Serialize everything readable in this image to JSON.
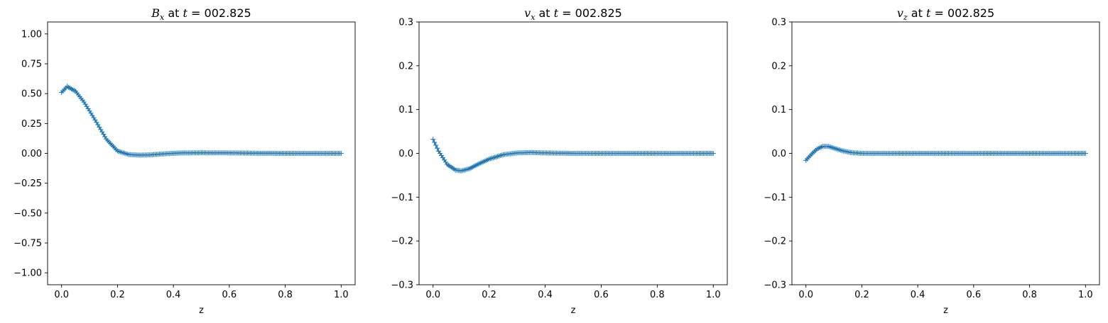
{
  "figure": {
    "background": "#ffffff",
    "marker_color": "#1f77b4",
    "marker": "+"
  },
  "chart_data": [
    {
      "type": "scatter",
      "title": {
        "var": "B",
        "sub": "x",
        "mid": " at ",
        "tvar": "t",
        "rest": " = 002.825"
      },
      "xlabel": "z",
      "ylabel": "",
      "xlim": [
        -0.05,
        1.05
      ],
      "ylim": [
        -1.1,
        1.1
      ],
      "xticks": [
        0.0,
        0.2,
        0.4,
        0.6,
        0.8,
        1.0
      ],
      "xtick_labels": [
        "0.0",
        "0.2",
        "0.4",
        "0.6",
        "0.8",
        "1.0"
      ],
      "yticks": [
        -1.0,
        -0.75,
        -0.5,
        -0.25,
        0.0,
        0.25,
        0.5,
        0.75,
        1.0
      ],
      "ytick_labels": [
        "−1.00",
        "−0.75",
        "−0.50",
        "−0.25",
        "0.00",
        "0.25",
        "0.50",
        "0.75",
        "1.00"
      ],
      "grid": false,
      "curve": {
        "x": [
          0.0,
          0.02,
          0.05,
          0.08,
          0.12,
          0.16,
          0.2,
          0.24,
          0.28,
          0.32,
          0.36,
          0.42,
          0.5,
          0.6,
          0.7,
          0.8,
          0.9,
          1.0
        ],
        "y": [
          0.51,
          0.56,
          0.52,
          0.43,
          0.28,
          0.12,
          0.02,
          -0.01,
          -0.015,
          -0.012,
          -0.005,
          0.003,
          0.005,
          0.004,
          0.001,
          0.0,
          0.0,
          0.0
        ]
      }
    },
    {
      "type": "scatter",
      "title": {
        "var": "v",
        "sub": "x",
        "mid": " at ",
        "tvar": "t",
        "rest": " = 002.825"
      },
      "xlabel": "z",
      "ylabel": "",
      "xlim": [
        -0.05,
        1.05
      ],
      "ylim": [
        -0.3,
        0.3
      ],
      "xticks": [
        0.0,
        0.2,
        0.4,
        0.6,
        0.8,
        1.0
      ],
      "xtick_labels": [
        "0.0",
        "0.2",
        "0.4",
        "0.6",
        "0.8",
        "1.0"
      ],
      "yticks": [
        -0.3,
        -0.2,
        -0.1,
        0.0,
        0.1,
        0.2,
        0.3
      ],
      "ytick_labels": [
        "−0.3",
        "−0.2",
        "−0.1",
        "0.0",
        "0.1",
        "0.2",
        "0.3"
      ],
      "grid": false,
      "curve": {
        "x": [
          0.0,
          0.02,
          0.05,
          0.08,
          0.1,
          0.13,
          0.16,
          0.2,
          0.25,
          0.3,
          0.35,
          0.4,
          0.5,
          0.6,
          0.8,
          1.0
        ],
        "y": [
          0.032,
          0.005,
          -0.025,
          -0.038,
          -0.04,
          -0.035,
          -0.025,
          -0.013,
          -0.003,
          0.001,
          0.002,
          0.001,
          0.0,
          0.0,
          0.0,
          0.0
        ]
      }
    },
    {
      "type": "scatter",
      "title": {
        "var": "v",
        "sub": "z",
        "mid": " at ",
        "tvar": "t",
        "rest": " = 002.825"
      },
      "xlabel": "z",
      "ylabel": "",
      "xlim": [
        -0.05,
        1.05
      ],
      "ylim": [
        -0.3,
        0.3
      ],
      "xticks": [
        0.0,
        0.2,
        0.4,
        0.6,
        0.8,
        1.0
      ],
      "xtick_labels": [
        "0.0",
        "0.2",
        "0.4",
        "0.6",
        "0.8",
        "1.0"
      ],
      "yticks": [
        -0.3,
        -0.2,
        -0.1,
        0.0,
        0.1,
        0.2,
        0.3
      ],
      "ytick_labels": [
        "−0.3",
        "−0.2",
        "−0.1",
        "0.0",
        "0.1",
        "0.2",
        "0.3"
      ],
      "grid": false,
      "curve": {
        "x": [
          0.0,
          0.02,
          0.04,
          0.06,
          0.08,
          0.1,
          0.13,
          0.16,
          0.2,
          0.3,
          0.5,
          0.8,
          1.0
        ],
        "y": [
          -0.016,
          -0.002,
          0.01,
          0.016,
          0.016,
          0.012,
          0.006,
          0.002,
          0.0,
          0.0,
          0.0,
          0.0,
          0.0
        ]
      }
    }
  ]
}
